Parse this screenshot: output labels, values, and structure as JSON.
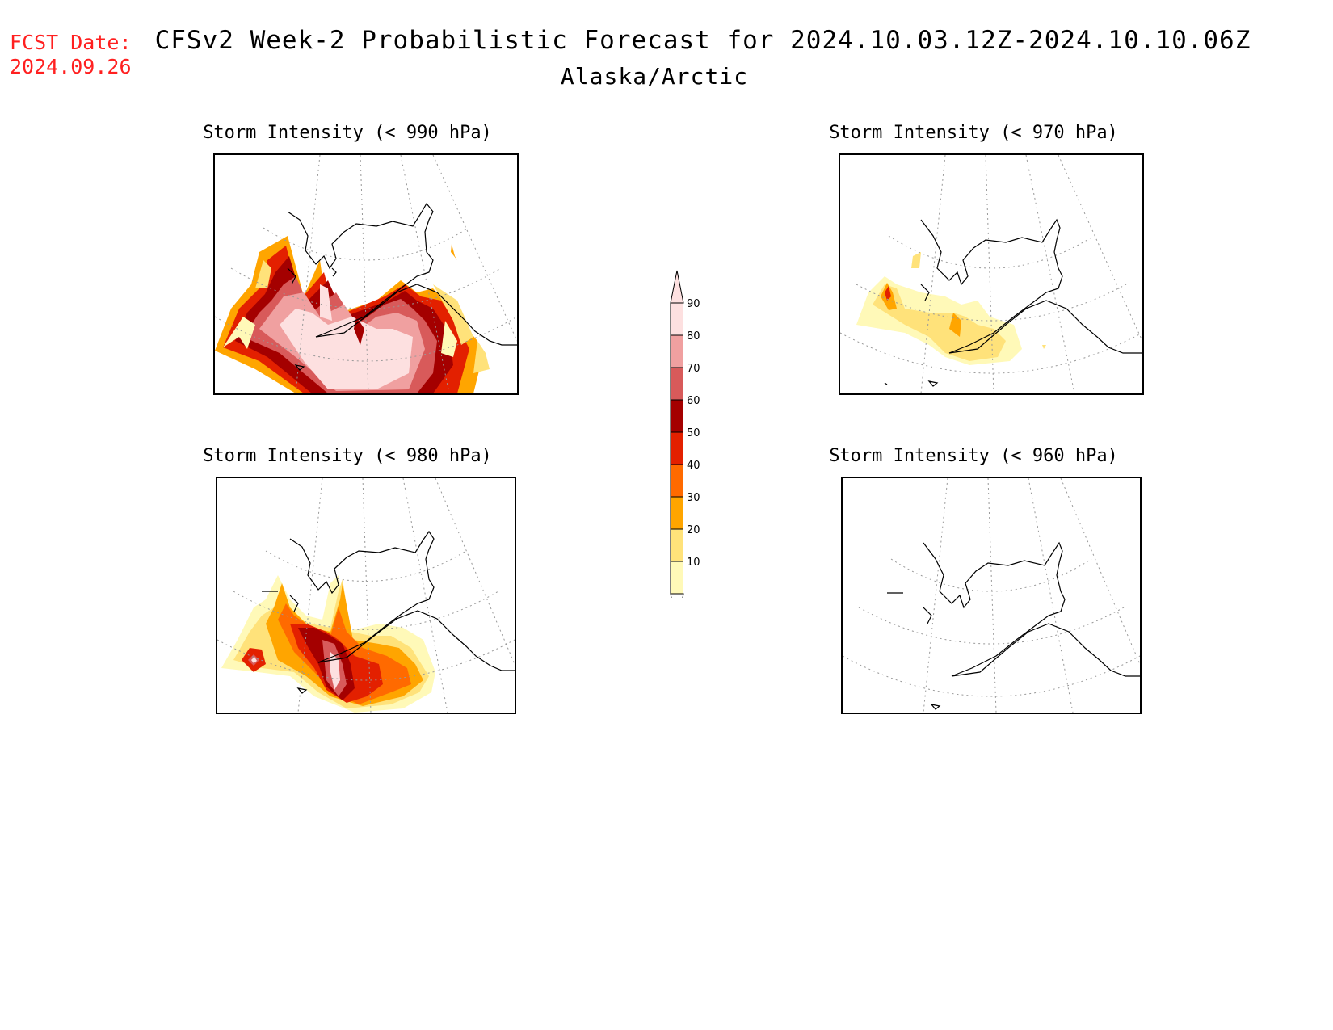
{
  "header": {
    "fcst_label": "FCST Date:",
    "fcst_value": "2024.09.26",
    "title": "CFSv2 Week-2 Probabilistic Forecast for 2024.10.03.12Z-2024.10.10.06Z",
    "subtitle": "Alaska/Arctic"
  },
  "panels": [
    {
      "title": "Storm Intensity (< 990 hPa)"
    },
    {
      "title": "Storm Intensity (< 970 hPa)"
    },
    {
      "title": "Storm Intensity (< 980 hPa)"
    },
    {
      "title": "Storm Intensity (< 960 hPa)"
    }
  ],
  "colorbar": {
    "levels": [
      "10",
      "20",
      "30",
      "40",
      "50",
      "60",
      "70",
      "80",
      "90"
    ],
    "colors": [
      "#fff9b8",
      "#ffe27a",
      "#ffa500",
      "#ff6a00",
      "#e32000",
      "#a40000",
      "#d85a5a",
      "#f0a0a0",
      "#fde0e0"
    ]
  },
  "colors": {
    "fcst_text": "#ff2020",
    "c10": "#fff9b8",
    "c20": "#ffe27a",
    "c30": "#ffa500",
    "c40": "#ff6a00",
    "c50": "#e32000",
    "c60": "#a40000",
    "c70": "#d85a5a",
    "c80": "#f0a0a0",
    "c90": "#fde0e0"
  }
}
